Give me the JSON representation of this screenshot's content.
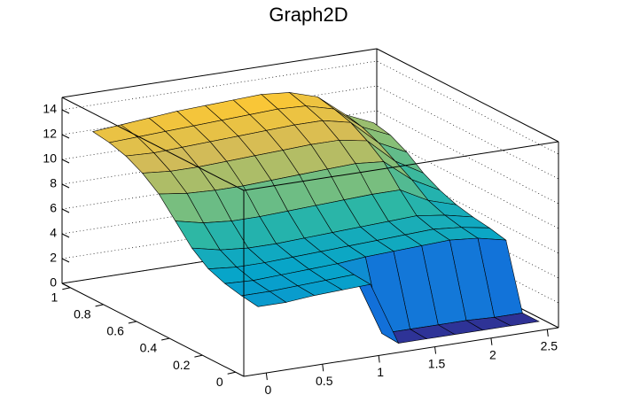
{
  "chart_data": {
    "type": "surface",
    "title": "Graph2D",
    "x": [
      0,
      0.25,
      0.5,
      0.75,
      1,
      1.25,
      1.5,
      1.75,
      2,
      2.25,
      2.5
    ],
    "y": [
      0,
      0.1,
      0.2,
      0.3,
      0.4,
      0.5,
      0.6,
      0.7,
      0.8,
      0.9,
      1
    ],
    "z": [
      [
        5,
        5,
        5.2,
        5.3,
        5.4,
        0.3,
        0.3,
        0.3,
        0.3,
        0.3,
        0.3
      ],
      [
        5.2,
        5.2,
        5.3,
        5.4,
        5.5,
        0.4,
        0.4,
        0.4,
        0.4,
        0.3,
        0.3
      ],
      [
        5.5,
        5.4,
        5.5,
        5.6,
        5.7,
        5.9,
        6,
        6.1,
        6.2,
        6,
        5.5
      ],
      [
        6,
        5.8,
        5.8,
        5.9,
        6,
        6.1,
        6.2,
        6.3,
        6.4,
        6.2,
        5.8
      ],
      [
        7,
        6.5,
        6.3,
        6.3,
        6.4,
        6.5,
        6.6,
        6.7,
        6.8,
        6.5,
        6
      ],
      [
        8.5,
        8,
        7.8,
        7.8,
        7.9,
        8,
        8.1,
        8.2,
        8.2,
        7,
        6.3
      ],
      [
        10,
        9.7,
        9.6,
        9.6,
        9.7,
        9.8,
        9.9,
        10,
        9.8,
        8,
        6.8
      ],
      [
        11,
        10.8,
        10.8,
        10.9,
        11,
        11.1,
        11.2,
        11.2,
        10.8,
        8.8,
        7.5
      ],
      [
        11.7,
        11.6,
        11.7,
        11.8,
        11.9,
        12,
        12.1,
        12.1,
        11.6,
        9.6,
        8.5
      ],
      [
        12.1,
        12.2,
        12.3,
        12.4,
        12.5,
        12.6,
        12.7,
        12.6,
        12,
        10.2,
        9.2
      ],
      [
        12.3,
        12.5,
        12.7,
        12.9,
        13,
        13.1,
        13.2,
        13,
        12.3,
        10.5,
        9.5
      ]
    ],
    "xlim": [
      -0.2,
      2.6
    ],
    "ylim": [
      -0.05,
      1.05
    ],
    "zlim": [
      0,
      15
    ],
    "xticks": [
      0,
      0.5,
      1,
      1.5,
      2,
      2.5
    ],
    "yticks": [
      0,
      0.2,
      0.4,
      0.6,
      0.8,
      1
    ],
    "zticks": [
      0,
      2,
      4,
      6,
      8,
      10,
      12,
      14
    ],
    "grid": true,
    "colors": [
      "#352a87",
      "#0f5cdd",
      "#1481d6",
      "#06a4ca",
      "#2eb7a4",
      "#87bf77",
      "#d1bb59",
      "#fec832",
      "#f9fb0e"
    ]
  }
}
